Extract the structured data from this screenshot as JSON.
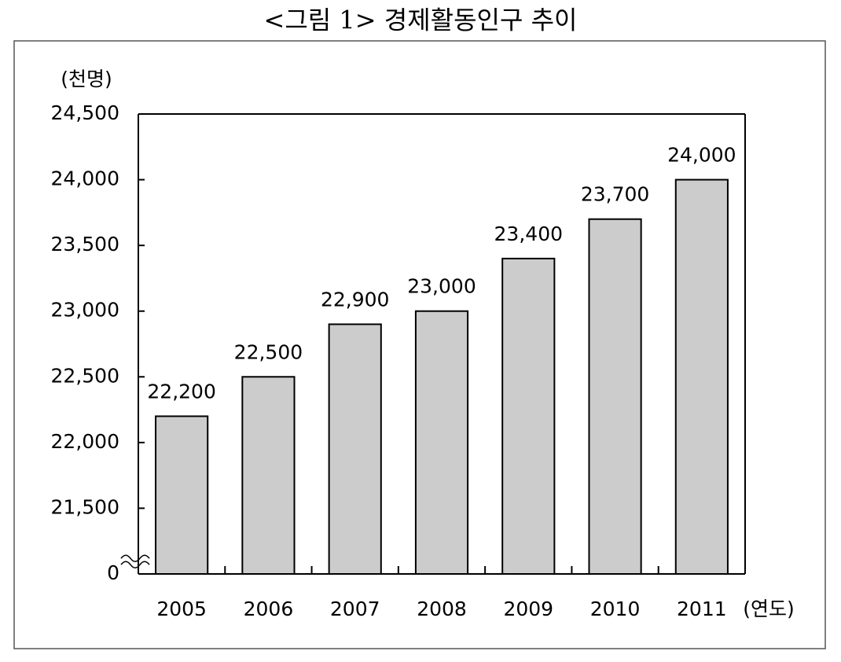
{
  "chart_data": {
    "type": "bar",
    "title": "<그림 1> 경제활동인구 추이",
    "y_label": "(천명)",
    "x_label": "(연도)",
    "categories": [
      "2005",
      "2006",
      "2007",
      "2008",
      "2009",
      "2010",
      "2011"
    ],
    "values": [
      22200,
      22500,
      22900,
      23000,
      23400,
      23700,
      24000
    ],
    "value_labels": [
      "22,200",
      "22,500",
      "22,900",
      "23,000",
      "23,400",
      "23,700",
      "24,000"
    ],
    "color": "#cccccc",
    "ylim": [
      0,
      24500
    ],
    "yticks": [
      0,
      {
        "value": 21500,
        "label": "21,500"
      },
      {
        "value": 22000,
        "label": "22,000"
      },
      {
        "value": 22500,
        "label": "22,500"
      },
      {
        "value": 23000,
        "label": "23,000"
      },
      {
        "value": 23500,
        "label": "23,500"
      },
      {
        "value": 24000,
        "label": "24,000"
      },
      {
        "value": 24500,
        "label": "24,500"
      }
    ],
    "axis_break": true,
    "grid": false
  }
}
